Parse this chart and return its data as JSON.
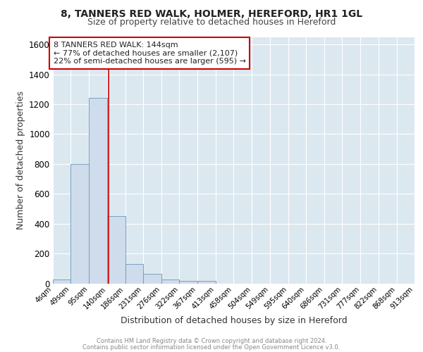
{
  "title1": "8, TANNERS RED WALK, HOLMER, HEREFORD, HR1 1GL",
  "title2": "Size of property relative to detached houses in Hereford",
  "xlabel": "Distribution of detached houses by size in Hereford",
  "ylabel": "Number of detached properties",
  "bin_edges": [
    4,
    49,
    95,
    140,
    186,
    231,
    276,
    322,
    367,
    413,
    458,
    504,
    549,
    595,
    640,
    686,
    731,
    777,
    822,
    868,
    913
  ],
  "bar_heights": [
    25,
    800,
    1240,
    450,
    130,
    65,
    25,
    15,
    15,
    0,
    0,
    0,
    0,
    0,
    0,
    0,
    0,
    0,
    0,
    0
  ],
  "bar_color": "#cfdceb",
  "bar_edge_color": "#6699bb",
  "red_line_x": 144,
  "ylim": [
    0,
    1650
  ],
  "yticks": [
    0,
    200,
    400,
    600,
    800,
    1000,
    1200,
    1400,
    1600
  ],
  "annotation_text": "8 TANNERS RED WALK: 144sqm\n← 77% of detached houses are smaller (2,107)\n22% of semi-detached houses are larger (595) →",
  "annotation_box_color": "#ffffff",
  "annotation_box_edge_color": "#cc0000",
  "footnote1": "Contains HM Land Registry data © Crown copyright and database right 2024.",
  "footnote2": "Contains public sector information licensed under the Open Government Licence v3.0.",
  "plot_bg_color": "#dce8f0",
  "title1_fontsize": 10,
  "title2_fontsize": 9,
  "xlabel_fontsize": 9,
  "ylabel_fontsize": 9,
  "ann_fontsize": 8,
  "footnote_fontsize": 6
}
